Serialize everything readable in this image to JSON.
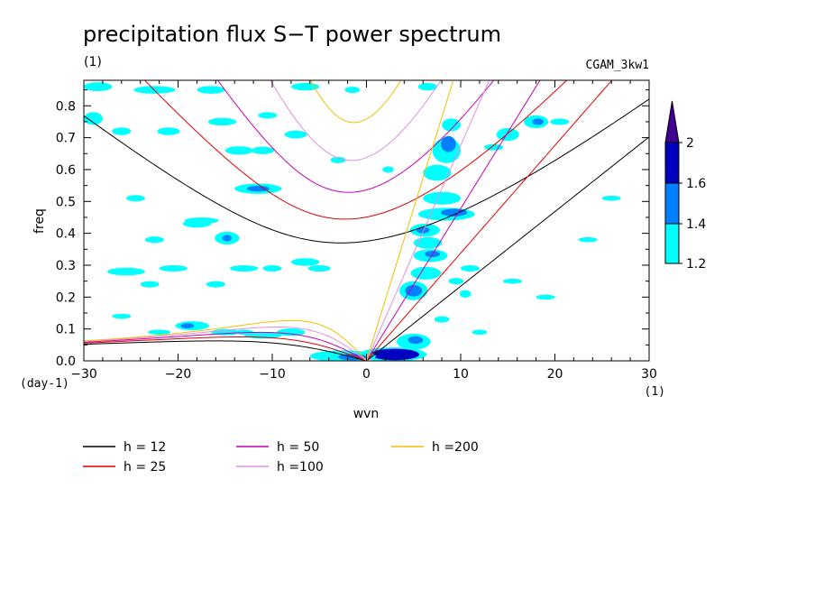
{
  "chart_data": {
    "type": "heatmap",
    "title": "precipitation flux S−T power spectrum",
    "subtitle": "(1)",
    "run_label": "CGAM_3kw1",
    "xlabel": "wvn",
    "ylabel": "freq",
    "x_unit": "(1)",
    "y_unit": "(day-1)",
    "xlim": [
      -30,
      30
    ],
    "ylim": [
      0,
      0.88
    ],
    "xticks": [
      -30,
      -20,
      -10,
      0,
      10,
      20,
      30
    ],
    "yticks": [
      0.0,
      0.1,
      0.2,
      0.3,
      0.4,
      0.5,
      0.6,
      0.7,
      0.8
    ],
    "xtick_labels": [
      "−30",
      "−20",
      "−10",
      "0",
      "10",
      "20",
      "30"
    ],
    "ytick_labels": [
      "0.0",
      "0.1",
      "0.2",
      "0.3",
      "0.4",
      "0.5",
      "0.6",
      "0.7",
      "0.8"
    ],
    "colorbar": {
      "levels": [
        1.2,
        1.4,
        1.6,
        2
      ],
      "labels": [
        "1.2",
        "1.4",
        "1.6",
        "2"
      ],
      "colors": [
        "#00ffff",
        "#0080ff",
        "#0000c0",
        "#400090"
      ]
    },
    "dispersion_curves": [
      {
        "label": "h = 12",
        "h": 12,
        "color": "#000000"
      },
      {
        "label": "h = 25",
        "h": 25,
        "color": "#e00000"
      },
      {
        "label": "h = 50",
        "h": 50,
        "color": "#c800b4"
      },
      {
        "label": "h =100",
        "h": 100,
        "color": "#e090e0"
      },
      {
        "label": "h =200",
        "h": 200,
        "color": "#f0c000"
      }
    ],
    "contour_blobs": [
      {
        "level": 1,
        "x": 2.8,
        "y": 0.02,
        "rx": 3.6,
        "ry": 0.022
      },
      {
        "level": 3,
        "x": 3.0,
        "y": 0.02,
        "rx": 2.6,
        "ry": 0.018
      },
      {
        "level": 1,
        "x": -2.5,
        "y": 0.015,
        "rx": 3.5,
        "ry": 0.018
      },
      {
        "level": 2,
        "x": -1.5,
        "y": 0.012,
        "rx": 1.5,
        "ry": 0.01
      },
      {
        "level": 1,
        "x": 5.0,
        "y": 0.06,
        "rx": 1.8,
        "ry": 0.025
      },
      {
        "level": 2,
        "x": 5.2,
        "y": 0.065,
        "rx": 0.8,
        "ry": 0.012
      },
      {
        "level": 1,
        "x": 5.0,
        "y": 0.22,
        "rx": 1.5,
        "ry": 0.03
      },
      {
        "level": 2,
        "x": 5.0,
        "y": 0.22,
        "rx": 0.9,
        "ry": 0.018
      },
      {
        "level": 1,
        "x": 6.3,
        "y": 0.275,
        "rx": 1.6,
        "ry": 0.02
      },
      {
        "level": 1,
        "x": 6.8,
        "y": 0.33,
        "rx": 1.8,
        "ry": 0.02
      },
      {
        "level": 2,
        "x": 7.0,
        "y": 0.335,
        "rx": 0.8,
        "ry": 0.01
      },
      {
        "level": 1,
        "x": 6.5,
        "y": 0.37,
        "rx": 1.5,
        "ry": 0.018
      },
      {
        "level": 1,
        "x": 6.2,
        "y": 0.41,
        "rx": 1.6,
        "ry": 0.02
      },
      {
        "level": 2,
        "x": 6.0,
        "y": 0.41,
        "rx": 0.7,
        "ry": 0.01
      },
      {
        "level": 1,
        "x": 8.5,
        "y": 0.46,
        "rx": 3.0,
        "ry": 0.02
      },
      {
        "level": 2,
        "x": 9.3,
        "y": 0.465,
        "rx": 1.4,
        "ry": 0.012
      },
      {
        "level": 1,
        "x": 8.0,
        "y": 0.51,
        "rx": 2.0,
        "ry": 0.02
      },
      {
        "level": 1,
        "x": 7.5,
        "y": 0.59,
        "rx": 1.5,
        "ry": 0.025
      },
      {
        "level": 1,
        "x": 8.5,
        "y": 0.66,
        "rx": 1.5,
        "ry": 0.04
      },
      {
        "level": 2,
        "x": 8.7,
        "y": 0.68,
        "rx": 0.8,
        "ry": 0.025
      },
      {
        "level": 1,
        "x": 9.0,
        "y": 0.74,
        "rx": 1.0,
        "ry": 0.02
      },
      {
        "level": 1,
        "x": 15.0,
        "y": 0.71,
        "rx": 1.2,
        "ry": 0.02
      },
      {
        "level": 1,
        "x": 18.0,
        "y": 0.75,
        "rx": 1.3,
        "ry": 0.02
      },
      {
        "level": 2,
        "x": 18.2,
        "y": 0.75,
        "rx": 0.6,
        "ry": 0.01
      },
      {
        "level": 1,
        "x": 10.5,
        "y": 0.21,
        "rx": 0.6,
        "ry": 0.012
      },
      {
        "level": 1,
        "x": -14.8,
        "y": 0.385,
        "rx": 1.3,
        "ry": 0.02
      },
      {
        "level": 2,
        "x": -14.8,
        "y": 0.385,
        "rx": 0.5,
        "ry": 0.01
      },
      {
        "level": 1,
        "x": -11.5,
        "y": 0.54,
        "rx": 2.5,
        "ry": 0.016
      },
      {
        "level": 2,
        "x": -11.5,
        "y": 0.54,
        "rx": 1.2,
        "ry": 0.009
      },
      {
        "level": 1,
        "x": -18.0,
        "y": 0.43,
        "rx": 1.5,
        "ry": 0.012
      },
      {
        "level": 1,
        "x": -18.5,
        "y": 0.11,
        "rx": 1.8,
        "ry": 0.014
      },
      {
        "level": 2,
        "x": -19.0,
        "y": 0.11,
        "rx": 0.7,
        "ry": 0.008
      },
      {
        "level": 1,
        "x": -8.0,
        "y": 0.09,
        "rx": 1.5,
        "ry": 0.012
      },
      {
        "level": 1,
        "x": -11.0,
        "y": 0.08,
        "rx": 2.0,
        "ry": 0.01
      },
      {
        "level": 1,
        "x": -15.0,
        "y": 0.09,
        "rx": 1.5,
        "ry": 0.01
      },
      {
        "level": 1,
        "x": -28.5,
        "y": 0.86,
        "rx": 1.5,
        "ry": 0.014
      },
      {
        "level": 1,
        "x": -22.5,
        "y": 0.85,
        "rx": 2.2,
        "ry": 0.012
      },
      {
        "level": 1,
        "x": -16.5,
        "y": 0.85,
        "rx": 1.5,
        "ry": 0.012
      },
      {
        "level": 1,
        "x": -6.5,
        "y": 0.86,
        "rx": 1.5,
        "ry": 0.012
      },
      {
        "level": 1,
        "x": 6.5,
        "y": 0.86,
        "rx": 1.0,
        "ry": 0.012
      },
      {
        "level": 1,
        "x": -29.0,
        "y": 0.76,
        "rx": 1.0,
        "ry": 0.02
      },
      {
        "level": 1,
        "x": -26.0,
        "y": 0.72,
        "rx": 1.0,
        "ry": 0.012
      },
      {
        "level": 1,
        "x": -21.0,
        "y": 0.72,
        "rx": 1.2,
        "ry": 0.012
      },
      {
        "level": 1,
        "x": -15.3,
        "y": 0.75,
        "rx": 1.5,
        "ry": 0.012
      },
      {
        "level": 1,
        "x": -13.5,
        "y": 0.66,
        "rx": 1.5,
        "ry": 0.013
      },
      {
        "level": 1,
        "x": -10.5,
        "y": 0.77,
        "rx": 1.0,
        "ry": 0.01
      },
      {
        "level": 1,
        "x": -11.0,
        "y": 0.66,
        "rx": 1.2,
        "ry": 0.012
      },
      {
        "level": 1,
        "x": -7.5,
        "y": 0.71,
        "rx": 1.2,
        "ry": 0.012
      },
      {
        "level": 1,
        "x": -24.5,
        "y": 0.51,
        "rx": 1.0,
        "ry": 0.01
      },
      {
        "level": 1,
        "x": -17.5,
        "y": 0.44,
        "rx": 1.8,
        "ry": 0.01
      },
      {
        "level": 1,
        "x": -22.5,
        "y": 0.38,
        "rx": 1.0,
        "ry": 0.01
      },
      {
        "level": 1,
        "x": -20.5,
        "y": 0.29,
        "rx": 1.5,
        "ry": 0.01
      },
      {
        "level": 1,
        "x": -25.5,
        "y": 0.28,
        "rx": 2.0,
        "ry": 0.012
      },
      {
        "level": 1,
        "x": -13.0,
        "y": 0.29,
        "rx": 1.5,
        "ry": 0.01
      },
      {
        "level": 1,
        "x": -10.0,
        "y": 0.29,
        "rx": 1.0,
        "ry": 0.01
      },
      {
        "level": 1,
        "x": -5.0,
        "y": 0.29,
        "rx": 1.2,
        "ry": 0.01
      },
      {
        "level": 1,
        "x": -23.0,
        "y": 0.24,
        "rx": 1.0,
        "ry": 0.01
      },
      {
        "level": 1,
        "x": -16.0,
        "y": 0.24,
        "rx": 1.0,
        "ry": 0.01
      },
      {
        "level": 1,
        "x": -6.5,
        "y": 0.31,
        "rx": 1.5,
        "ry": 0.012
      },
      {
        "level": 1,
        "x": -26.0,
        "y": 0.14,
        "rx": 1.0,
        "ry": 0.008
      },
      {
        "level": 1,
        "x": -22.0,
        "y": 0.09,
        "rx": 1.2,
        "ry": 0.008
      },
      {
        "level": 1,
        "x": -13.0,
        "y": 0.09,
        "rx": 1.0,
        "ry": 0.008
      },
      {
        "level": 1,
        "x": 15.5,
        "y": 0.25,
        "rx": 1.0,
        "ry": 0.008
      },
      {
        "level": 1,
        "x": 19.0,
        "y": 0.2,
        "rx": 1.0,
        "ry": 0.008
      },
      {
        "level": 1,
        "x": 20.5,
        "y": 0.75,
        "rx": 1.0,
        "ry": 0.01
      },
      {
        "level": 1,
        "x": 26.0,
        "y": 0.51,
        "rx": 1.0,
        "ry": 0.008
      },
      {
        "level": 1,
        "x": 23.5,
        "y": 0.38,
        "rx": 1.0,
        "ry": 0.008
      },
      {
        "level": 1,
        "x": 13.5,
        "y": 0.67,
        "rx": 1.0,
        "ry": 0.01
      },
      {
        "level": 1,
        "x": 11.0,
        "y": 0.29,
        "rx": 1.0,
        "ry": 0.01
      },
      {
        "level": 1,
        "x": 9.5,
        "y": 0.25,
        "rx": 0.8,
        "ry": 0.01
      },
      {
        "level": 1,
        "x": 8.0,
        "y": 0.13,
        "rx": 0.8,
        "ry": 0.01
      },
      {
        "level": 1,
        "x": 2.3,
        "y": 0.6,
        "rx": 0.6,
        "ry": 0.01
      },
      {
        "level": 1,
        "x": -3.0,
        "y": 0.63,
        "rx": 0.8,
        "ry": 0.01
      },
      {
        "level": 1,
        "x": -1.5,
        "y": 0.85,
        "rx": 0.8,
        "ry": 0.01
      },
      {
        "level": 1,
        "x": 12.0,
        "y": 0.09,
        "rx": 0.8,
        "ry": 0.008
      }
    ]
  }
}
